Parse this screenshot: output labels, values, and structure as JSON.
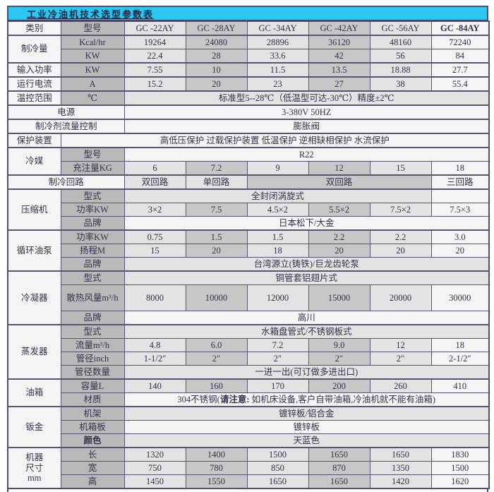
{
  "table": {
    "title": "工业冷油机技术选型参数表",
    "column_headers": [
      "类别",
      "型号",
      "GC -22AY",
      "GC -28AY",
      "GC -34AY",
      "GC -42AY",
      "GC -56AY",
      "GC -84AY"
    ],
    "colors": {
      "title_bar": "#2cc6f2",
      "border": "#4f4f6e",
      "label_gray": "#b9b9b9",
      "col_light": "#e3e3e3",
      "col_medium": "#c7c7c7",
      "col_white": "#f5f5f5"
    },
    "rows": [
      {
        "cells": [
          {
            "t": "类别",
            "bg": "w"
          },
          {
            "t": "型号",
            "bg": "g"
          },
          {
            "t": "GC -22AY",
            "bg": "l"
          },
          {
            "t": "GC -28AY",
            "bg": "m"
          },
          {
            "t": "GC -34AY",
            "bg": "l"
          },
          {
            "t": "GC -42AY",
            "bg": "m"
          },
          {
            "t": "GC -56AY",
            "bg": "l"
          },
          {
            "t": "GC -84AY",
            "bg": "w",
            "b": true
          }
        ]
      },
      {
        "top": true,
        "cells": [
          {
            "t": "制冷量",
            "bg": "w",
            "rs": 2
          },
          {
            "t": "Kcal/hr",
            "bg": "g"
          }
        ],
        "values": [
          "19264",
          "24080",
          "28896",
          "36120",
          "48160",
          "72240"
        ]
      },
      {
        "cells": [
          {
            "t": "KW",
            "bg": "g"
          }
        ],
        "values": [
          "22.4",
          "28",
          "33.6",
          "42",
          "56",
          "84"
        ]
      },
      {
        "top": true,
        "cells": [
          {
            "t": "输入功率",
            "bg": "w"
          },
          {
            "t": "KW",
            "bg": "g"
          }
        ],
        "values": [
          "7.55",
          "10",
          "11.5",
          "13.5",
          "18.88",
          "27.7"
        ]
      },
      {
        "top": true,
        "cells": [
          {
            "t": "运行电流",
            "bg": "w"
          },
          {
            "t": "A",
            "bg": "g"
          }
        ],
        "values": [
          "15.2",
          "20",
          "23",
          "27",
          "38",
          "55.4"
        ]
      },
      {
        "top": true,
        "cells": [
          {
            "t": "温控范围",
            "bg": "w"
          },
          {
            "t": "℃",
            "bg": "g"
          },
          {
            "t": "标准型5--28℃（低温型可达-30℃）精度±2℃",
            "bg": "l",
            "cs": 6
          }
        ]
      },
      {
        "top": true,
        "cells": [
          {
            "t": "电源",
            "bg": "w",
            "cs": 2
          },
          {
            "t": "3-380V 50HZ",
            "bg": "w",
            "cs": 6
          }
        ]
      },
      {
        "top": true,
        "cells": [
          {
            "t": "制冷剂流量控制",
            "bg": "w",
            "cs": 2
          },
          {
            "t": "膨胀阀",
            "bg": "w",
            "cs": 6
          }
        ]
      },
      {
        "top": true,
        "cells": [
          {
            "t": "保护装置",
            "bg": "w"
          },
          {
            "t": "高低压保护 过载保护装置 低温保护 逆相缺相保护 水流保护",
            "bg": "w",
            "cs": 7
          }
        ]
      },
      {
        "top": true,
        "cells": [
          {
            "t": "冷媒",
            "bg": "w",
            "rs": 2
          },
          {
            "t": "型号",
            "bg": "g"
          },
          {
            "t": "R22",
            "bg": "w",
            "cs": 6
          }
        ]
      },
      {
        "cells": [
          {
            "t": "充注量KG",
            "bg": "g"
          }
        ],
        "values": [
          "6",
          "7.2",
          "9",
          "12",
          "15",
          "18"
        ]
      },
      {
        "top": true,
        "cells": [
          {
            "t": "制冷回路",
            "bg": "w",
            "cs": 2
          },
          {
            "t": "双回路",
            "bg": "l"
          },
          {
            "t": "单回路",
            "bg": "l"
          },
          {
            "t": "双回路",
            "bg": "m",
            "cs": 3
          },
          {
            "t": "三回路",
            "bg": "w"
          }
        ]
      },
      {
        "top": true,
        "cells": [
          {
            "t": "压缩机",
            "bg": "w",
            "rs": 3
          },
          {
            "t": "型式",
            "bg": "g"
          },
          {
            "t": "全封闭涡旋式",
            "bg": "l",
            "cs": 5
          },
          {
            "t": "",
            "bg": "w"
          }
        ]
      },
      {
        "cells": [
          {
            "t": "功率KW",
            "bg": "g"
          }
        ],
        "values": [
          "3×2",
          "7.5",
          "4.5×2",
          "5.5×2",
          "7.5×2",
          "7.5×3"
        ]
      },
      {
        "cells": [
          {
            "t": "品牌",
            "bg": "g"
          },
          {
            "t": "日本松下/大金",
            "bg": "w",
            "cs": 6
          }
        ]
      },
      {
        "top": true,
        "cells": [
          {
            "t": "循环油泵",
            "bg": "w",
            "rs": 3
          },
          {
            "t": "功率KW",
            "bg": "g"
          }
        ],
        "values": [
          "0.75",
          "1.5",
          "1.5",
          "2.2",
          "2.2",
          "3.0"
        ]
      },
      {
        "cells": [
          {
            "t": "扬程M",
            "bg": "g"
          }
        ],
        "values": [
          "15",
          "20",
          "18",
          "20",
          "20",
          "20"
        ]
      },
      {
        "cells": [
          {
            "t": "品牌",
            "bg": "g"
          },
          {
            "t": "台湾源立(铸铁)/巨龙齿轮泵",
            "bg": "l",
            "cs": 6
          }
        ]
      },
      {
        "top": true,
        "cells": [
          {
            "t": "冷凝器",
            "bg": "w",
            "rs": 3
          },
          {
            "t": "型式",
            "bg": "g"
          },
          {
            "t": "铜管套铝翅片式",
            "bg": "l",
            "cs": 6
          }
        ]
      },
      {
        "h": 37,
        "cells": [
          {
            "t": "散热风量m³/h",
            "bg": "g"
          }
        ],
        "values": [
          "8000",
          "10000",
          "12000",
          "15000",
          "20000",
          "30000"
        ]
      },
      {
        "cells": [
          {
            "t": "品牌",
            "bg": "g"
          },
          {
            "t": "高川",
            "bg": "w",
            "cs": 6
          }
        ]
      },
      {
        "top": true,
        "cells": [
          {
            "t": "蒸发器",
            "bg": "w",
            "rs": 4
          },
          {
            "t": "型式",
            "bg": "g"
          },
          {
            "t": "水箱盘管式/不锈钢板式",
            "bg": "l",
            "cs": 6
          }
        ]
      },
      {
        "cells": [
          {
            "t": "流量m³/h",
            "bg": "g"
          }
        ],
        "values": [
          "4.8",
          "6.0",
          "7.2",
          "9.0",
          "12",
          "18"
        ]
      },
      {
        "cells": [
          {
            "t": "管径inch",
            "bg": "g"
          }
        ],
        "values": [
          "1-1/2″",
          "2″",
          "2″",
          "2″",
          "2″",
          "2-1/2″"
        ]
      },
      {
        "cells": [
          {
            "t": "管径数量",
            "bg": "g"
          },
          {
            "t": "一进一出(可订做多进出口)",
            "bg": "l",
            "cs": 6
          }
        ]
      },
      {
        "top": true,
        "cells": [
          {
            "t": "油箱",
            "bg": "w",
            "rs": 2
          },
          {
            "t": "容量L",
            "bg": "g"
          }
        ],
        "values": [
          "140",
          "160",
          "170",
          "200",
          "260",
          "410"
        ]
      },
      {
        "cells": [
          {
            "t": "材质",
            "bg": "g"
          },
          {
            "bg": "w",
            "cs": 6,
            "parts": [
              {
                "t": "304不锈钢("
              },
              {
                "t": "请注意:",
                "b": true
              },
              {
                "t": " 如机床设备,客户自带油箱,冷油机就不能有油箱)"
              }
            ]
          }
        ]
      },
      {
        "top": true,
        "cells": [
          {
            "t": "钣金",
            "bg": "w",
            "rs": 3
          },
          {
            "t": "机架",
            "bg": "g"
          },
          {
            "t": "镀锌板/铝合金",
            "bg": "l",
            "cs": 6
          }
        ]
      },
      {
        "cells": [
          {
            "t": "机箱板",
            "bg": "g"
          },
          {
            "t": "镀锌板",
            "bg": "w",
            "cs": 6
          }
        ]
      },
      {
        "cells": [
          {
            "t": "颜色",
            "bg": "g",
            "b": true
          },
          {
            "t": "天蓝色",
            "bg": "l",
            "cs": 6
          }
        ]
      },
      {
        "top": true,
        "cells": [
          {
            "bg": "w",
            "rs": 3,
            "lines": [
              "机器",
              "尺寸",
              "mm"
            ]
          },
          {
            "t": "长",
            "bg": "g"
          }
        ],
        "values": [
          "1320",
          "1400",
          "1500",
          "1650",
          "1650",
          "1830"
        ]
      },
      {
        "cells": [
          {
            "t": "宽",
            "bg": "g"
          }
        ],
        "values": [
          "750",
          "780",
          "850",
          "870",
          "1350",
          "1500"
        ]
      },
      {
        "cells": [
          {
            "t": "高",
            "bg": "g"
          }
        ],
        "values": [
          "1450",
          "1550",
          "1650",
          "1650",
          "1420",
          "1620"
        ]
      }
    ]
  }
}
